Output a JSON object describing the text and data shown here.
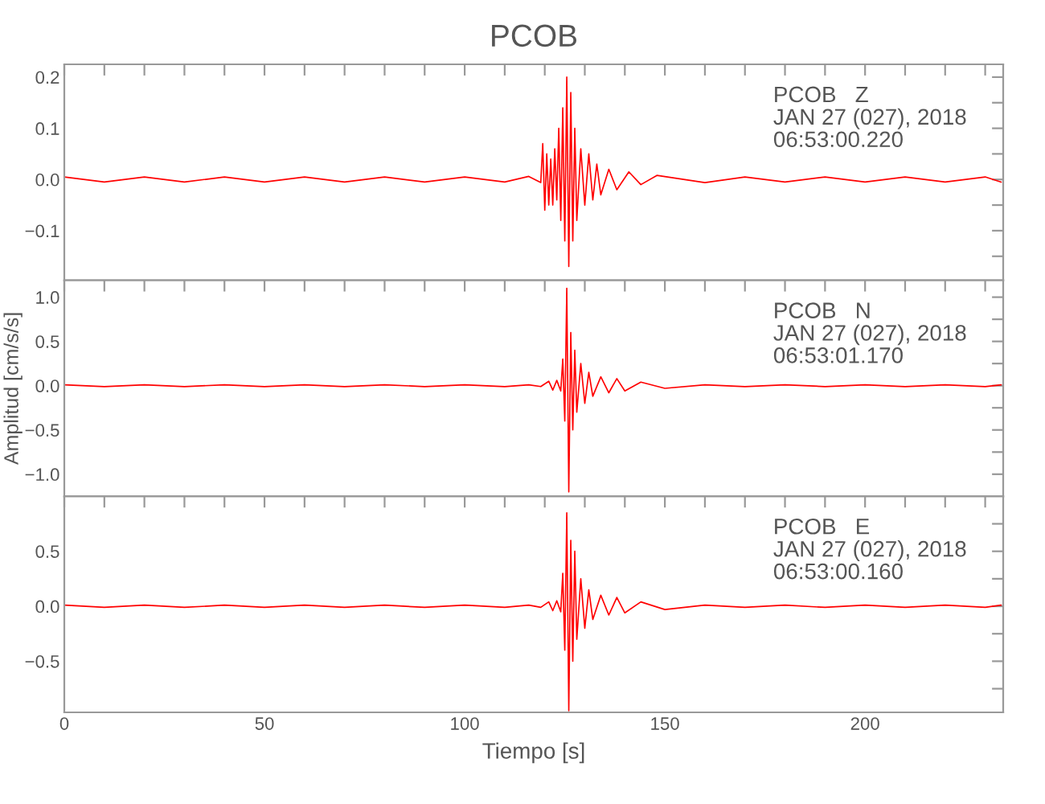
{
  "chart_data": [
    {
      "type": "line",
      "title": "PCOB",
      "tick_labels": "y",
      "xlim": [
        0,
        234.5
      ],
      "ylim": [
        -0.197,
        0.225
      ],
      "xticks": [
        0,
        {
          "value": 10,
          "label": null
        },
        {
          "value": 20,
          "label": null
        },
        {
          "value": 30,
          "label": null
        },
        {
          "value": 40,
          "label": null
        },
        50,
        {
          "value": 60,
          "label": null
        },
        {
          "value": 70,
          "label": null
        },
        {
          "value": 80,
          "label": null
        },
        {
          "value": 90,
          "label": null
        },
        100,
        {
          "value": 110,
          "label": null
        },
        {
          "value": 120,
          "label": null
        },
        {
          "value": 130,
          "label": null
        },
        {
          "value": 140,
          "label": null
        },
        150,
        {
          "value": 160,
          "label": null
        },
        {
          "value": 170,
          "label": null
        },
        {
          "value": 180,
          "label": null
        },
        {
          "value": 190,
          "label": null
        },
        200,
        {
          "value": 210,
          "label": null
        },
        {
          "value": 220,
          "label": null
        },
        {
          "value": 230,
          "label": null
        }
      ],
      "yticks": [
        {
          "value": -0.15,
          "label": null
        },
        {
          "value": -0.1,
          "label": "−0.1"
        },
        {
          "value": -0.05,
          "label": null
        },
        {
          "value": 0,
          "label": "0.0"
        },
        {
          "value": 0.05,
          "label": null
        },
        0.1,
        {
          "value": 0.15,
          "label": null
        },
        0.2
      ],
      "annotations": [
        "PCOB   Z\nJAN 27 (027), 2018\n06:53:00.220"
      ],
      "series": [
        {
          "color": "#ff0000",
          "x": [
            0,
            10,
            20,
            30,
            40,
            50,
            60,
            70,
            80,
            90,
            100,
            110,
            116,
            119,
            119.5,
            120,
            120.5,
            121,
            121.5,
            122,
            122.5,
            123,
            123.5,
            124,
            124.5,
            125,
            125.5,
            126,
            126.5,
            127,
            127.5,
            128,
            129,
            130,
            131,
            132,
            133,
            134,
            136,
            138,
            141,
            144,
            148,
            160,
            170,
            180,
            190,
            200,
            210,
            220,
            230,
            234
          ],
          "values": [
            0.005,
            -0.005,
            0.005,
            -0.005,
            0.005,
            -0.005,
            0.005,
            -0.005,
            0.005,
            -0.005,
            0.005,
            -0.005,
            0.006,
            -0.006,
            0.07,
            -0.06,
            0.05,
            -0.05,
            0.04,
            -0.05,
            0.06,
            -0.04,
            0.1,
            -0.08,
            0.14,
            -0.12,
            0.2,
            -0.17,
            0.17,
            -0.12,
            0.1,
            -0.08,
            0.06,
            -0.05,
            0.05,
            -0.04,
            0.03,
            -0.03,
            0.02,
            -0.02,
            0.015,
            -0.01,
            0.008,
            -0.006,
            0.005,
            -0.005,
            0.005,
            -0.005,
            0.005,
            -0.005,
            0.005,
            -0.005
          ]
        }
      ]
    },
    {
      "type": "line",
      "ylabel": "Amplitud [cm/s/s]",
      "tick_labels": "y",
      "xlim": [
        0,
        234.5
      ],
      "ylim": [
        -1.25,
        1.19
      ],
      "xticks": [
        0,
        {
          "value": 10,
          "label": null
        },
        {
          "value": 20,
          "label": null
        },
        {
          "value": 30,
          "label": null
        },
        {
          "value": 40,
          "label": null
        },
        50,
        {
          "value": 60,
          "label": null
        },
        {
          "value": 70,
          "label": null
        },
        {
          "value": 80,
          "label": null
        },
        {
          "value": 90,
          "label": null
        },
        100,
        {
          "value": 110,
          "label": null
        },
        {
          "value": 120,
          "label": null
        },
        {
          "value": 130,
          "label": null
        },
        {
          "value": 140,
          "label": null
        },
        150,
        {
          "value": 160,
          "label": null
        },
        {
          "value": 170,
          "label": null
        },
        {
          "value": 180,
          "label": null
        },
        {
          "value": 190,
          "label": null
        },
        200,
        {
          "value": 210,
          "label": null
        },
        {
          "value": 220,
          "label": null
        },
        {
          "value": 230,
          "label": null
        }
      ],
      "yticks": [
        {
          "value": -1.0,
          "label": "−1.0"
        },
        {
          "value": -0.75,
          "label": null
        },
        {
          "value": -0.5,
          "label": "−0.5"
        },
        {
          "value": -0.25,
          "label": null
        },
        {
          "value": 0,
          "label": "0.0"
        },
        {
          "value": 0.25,
          "label": null
        },
        0.5,
        {
          "value": 0.75,
          "label": null
        },
        {
          "value": 1,
          "label": "1.0"
        }
      ],
      "annotations": [
        "PCOB   N\nJAN 27 (027), 2018\n06:53:01.170"
      ],
      "series": [
        {
          "color": "#ff0000",
          "x": [
            0,
            10,
            20,
            30,
            40,
            50,
            60,
            70,
            80,
            90,
            100,
            110,
            116,
            119,
            121,
            122,
            123,
            124,
            124.5,
            125,
            125.5,
            126,
            126.5,
            127,
            127.5,
            128,
            129,
            130,
            131,
            132,
            134,
            136,
            138,
            140,
            144,
            150,
            160,
            170,
            180,
            190,
            200,
            210,
            220,
            230,
            234
          ],
          "values": [
            0.01,
            -0.01,
            0.01,
            -0.01,
            0.01,
            -0.01,
            0.01,
            -0.01,
            0.01,
            -0.01,
            0.01,
            -0.01,
            0.01,
            -0.01,
            0.05,
            -0.05,
            0.06,
            -0.06,
            0.3,
            -0.4,
            1.1,
            -1.2,
            0.6,
            -0.5,
            0.4,
            -0.3,
            0.25,
            -0.2,
            0.15,
            -0.12,
            0.1,
            -0.08,
            0.08,
            -0.06,
            0.04,
            -0.03,
            0.01,
            -0.01,
            0.01,
            -0.01,
            0.01,
            -0.01,
            0.01,
            -0.01,
            0.01
          ]
        }
      ]
    },
    {
      "type": "line",
      "xlabel": "Tiempo [s]",
      "xlim": [
        0,
        234.5
      ],
      "ylim": [
        -0.965,
        1.0
      ],
      "xticks": [
        0,
        {
          "value": 10,
          "label": null
        },
        {
          "value": 20,
          "label": null
        },
        {
          "value": 30,
          "label": null
        },
        {
          "value": 40,
          "label": null
        },
        50,
        {
          "value": 60,
          "label": null
        },
        {
          "value": 70,
          "label": null
        },
        {
          "value": 80,
          "label": null
        },
        {
          "value": 90,
          "label": null
        },
        100,
        {
          "value": 110,
          "label": null
        },
        {
          "value": 120,
          "label": null
        },
        {
          "value": 130,
          "label": null
        },
        {
          "value": 140,
          "label": null
        },
        150,
        {
          "value": 160,
          "label": null
        },
        {
          "value": 170,
          "label": null
        },
        {
          "value": 180,
          "label": null
        },
        {
          "value": 190,
          "label": null
        },
        200,
        {
          "value": 210,
          "label": null
        },
        {
          "value": 220,
          "label": null
        },
        {
          "value": 230,
          "label": null
        }
      ],
      "yticks": [
        {
          "value": -0.75,
          "label": null
        },
        {
          "value": -0.5,
          "label": "−0.5"
        },
        {
          "value": -0.25,
          "label": null
        },
        {
          "value": 0,
          "label": "0.0"
        },
        {
          "value": 0.25,
          "label": null
        },
        0.5,
        {
          "value": 0.75,
          "label": null
        }
      ],
      "annotations": [
        "PCOB   E\nJAN 27 (027), 2018\n06:53:00.160"
      ],
      "series": [
        {
          "color": "#ff0000",
          "x": [
            0,
            10,
            20,
            30,
            40,
            50,
            60,
            70,
            80,
            90,
            100,
            110,
            116,
            119,
            121,
            122,
            123,
            124,
            124.5,
            125,
            125.5,
            126,
            126.5,
            127,
            127.5,
            128,
            129,
            130,
            131,
            132,
            134,
            136,
            138,
            140,
            144,
            150,
            160,
            170,
            180,
            190,
            200,
            210,
            220,
            230,
            234
          ],
          "values": [
            0.01,
            -0.01,
            0.01,
            -0.01,
            0.01,
            -0.01,
            0.01,
            -0.01,
            0.01,
            -0.01,
            0.01,
            -0.01,
            0.01,
            -0.01,
            0.04,
            -0.04,
            0.05,
            -0.05,
            0.3,
            -0.4,
            0.85,
            -0.95,
            0.6,
            -0.5,
            0.5,
            -0.3,
            0.25,
            -0.2,
            0.15,
            -0.12,
            0.1,
            -0.08,
            0.08,
            -0.06,
            0.04,
            -0.03,
            0.01,
            -0.01,
            0.01,
            -0.01,
            0.01,
            -0.01,
            0.01,
            -0.01,
            0.01
          ]
        }
      ]
    }
  ]
}
